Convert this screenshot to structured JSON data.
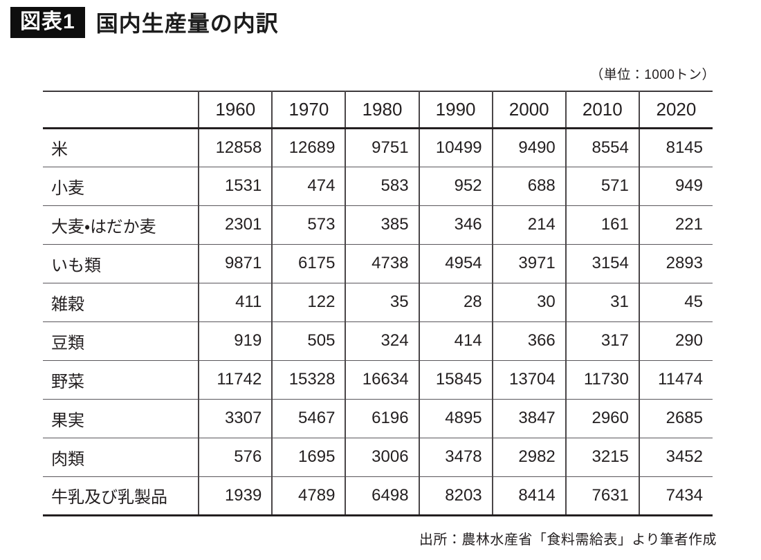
{
  "title": {
    "badge": "図表1",
    "text": "国内生産量の内訳"
  },
  "unit_note": "（単位：1000トン）",
  "source_note": "出所：農林水産省「食料需給表」より筆者作成",
  "chart_data": {
    "type": "table",
    "title": "国内生産量の内訳",
    "unit": "1000トン",
    "columns": [
      "1960",
      "1970",
      "1980",
      "1990",
      "2000",
      "2010",
      "2020"
    ],
    "rows": [
      {
        "label": "米",
        "values": [
          12858,
          12689,
          9751,
          10499,
          9490,
          8554,
          8145
        ]
      },
      {
        "label": "小麦",
        "values": [
          1531,
          474,
          583,
          952,
          688,
          571,
          949
        ]
      },
      {
        "label": "大麦・はだか麦",
        "values": [
          2301,
          573,
          385,
          346,
          214,
          161,
          221
        ]
      },
      {
        "label": "いも類",
        "values": [
          9871,
          6175,
          4738,
          4954,
          3971,
          3154,
          2893
        ]
      },
      {
        "label": "雑穀",
        "values": [
          411,
          122,
          35,
          28,
          30,
          31,
          45
        ]
      },
      {
        "label": "豆類",
        "values": [
          919,
          505,
          324,
          414,
          366,
          317,
          290
        ]
      },
      {
        "label": "野菜",
        "values": [
          11742,
          15328,
          16634,
          15845,
          13704,
          11730,
          11474
        ]
      },
      {
        "label": "果実",
        "values": [
          3307,
          5467,
          6196,
          4895,
          3847,
          2960,
          2685
        ]
      },
      {
        "label": "肉類",
        "values": [
          576,
          1695,
          3006,
          3478,
          2982,
          3215,
          3452
        ]
      },
      {
        "label": "牛乳及び乳製品",
        "values": [
          1939,
          4789,
          6498,
          8203,
          8414,
          7631,
          7434
        ]
      }
    ]
  },
  "colors": {
    "badge_background": "#0e0e0e",
    "badge_text": "#ffffff",
    "text": "#231f20",
    "thick_rule": "#231f20",
    "thin_rule": "#58555a",
    "background": "#ffffff"
  }
}
